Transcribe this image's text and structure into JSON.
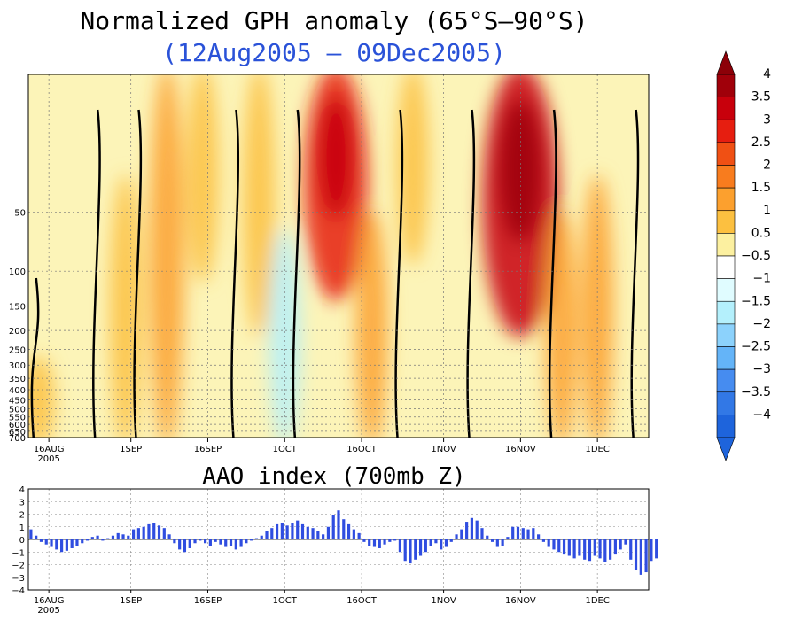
{
  "chart_data": [
    {
      "type": "heatmap",
      "title": "Normalized GPH anomaly (65°S–90°S)",
      "subtitle": "(12Aug2005 – 09Dec2005)",
      "x_ticks": [
        "16AUG",
        "1SEP",
        "16SEP",
        "1OCT",
        "16OCT",
        "1NOV",
        "16NOV",
        "1DEC"
      ],
      "x_year": "2005",
      "y_ticks": [
        "50",
        "100",
        "150",
        "200",
        "250",
        "300",
        "350",
        "400",
        "450",
        "500",
        "550",
        "600",
        "650",
        "700"
      ],
      "colorbar": {
        "levels": [
          "4",
          "3.5",
          "3",
          "2.5",
          "2",
          "1.5",
          "1",
          "0.5",
          "−0.5",
          "−1",
          "−1.5",
          "−2",
          "−2.5",
          "−3",
          "−3.5",
          "−4"
        ],
        "colors": [
          "#a0000a",
          "#c8000c",
          "#e61e10",
          "#f05014",
          "#f87c1e",
          "#fca02e",
          "#fcc040",
          "#fcf0a0",
          "#ffffff",
          "#e0fcff",
          "#b4f0fc",
          "#8cd2fc",
          "#64b4f8",
          "#468cf0",
          "#3278e6",
          "#1e64dc"
        ]
      },
      "features": [
        {
          "day": 2,
          "p_top": 0.8,
          "p_bot": 1.0,
          "value": 0.6
        },
        {
          "day": 19,
          "p_top": 0.3,
          "p_bot": 1.0,
          "value": 0.7
        },
        {
          "day": 27,
          "p_top": 0.0,
          "p_bot": 1.0,
          "value": 1.4
        },
        {
          "day": 34,
          "p_top": 0.0,
          "p_bot": 0.55,
          "value": 0.7
        },
        {
          "day": 45,
          "p_top": 0.0,
          "p_bot": 0.7,
          "value": 0.7
        },
        {
          "day": 50,
          "p_top": 0.45,
          "p_bot": 1.0,
          "value": -1.2
        },
        {
          "day": 60,
          "p_top": 0.0,
          "p_bot": 0.6,
          "value": 2.6
        },
        {
          "day": 67,
          "p_top": 0.4,
          "p_bot": 1.0,
          "value": 1.2
        },
        {
          "day": 75,
          "p_top": 0.0,
          "p_bot": 0.5,
          "value": 0.6
        },
        {
          "day": 96,
          "p_top": 0.0,
          "p_bot": 0.7,
          "value": 3.1
        },
        {
          "day": 104,
          "p_top": 0.4,
          "p_bot": 1.0,
          "value": 1.2
        },
        {
          "day": 111,
          "p_top": 0.3,
          "p_bot": 1.0,
          "value": 1.0
        }
      ]
    },
    {
      "type": "bar",
      "title": "AAO index (700mb Z)",
      "x_ticks": [
        "16AUG",
        "1SEP",
        "16SEP",
        "1OCT",
        "16OCT",
        "1NOV",
        "16NOV",
        "1DEC"
      ],
      "x_year": "2005",
      "y_ticks": [
        "4",
        "3",
        "2",
        "1",
        "0",
        "−1",
        "−2",
        "−3",
        "−4"
      ],
      "ylim": [
        -4,
        4
      ],
      "x_range_days": [
        0,
        121
      ],
      "start_date": "2005-08-12",
      "values": [
        0.8,
        0.3,
        -0.2,
        -0.4,
        -0.6,
        -0.8,
        -1.0,
        -0.9,
        -0.7,
        -0.5,
        -0.3,
        -0.1,
        0.2,
        0.3,
        -0.1,
        0.1,
        0.3,
        0.5,
        0.4,
        0.3,
        0.8,
        0.9,
        1.0,
        1.2,
        1.3,
        1.1,
        0.9,
        0.4,
        -0.3,
        -0.8,
        -1.0,
        -0.7,
        -0.3,
        -0.1,
        -0.3,
        -0.5,
        -0.2,
        -0.4,
        -0.6,
        -0.5,
        -0.8,
        -0.6,
        -0.3,
        -0.1,
        0.1,
        0.3,
        0.7,
        0.9,
        1.2,
        1.3,
        1.1,
        1.3,
        1.5,
        1.2,
        1.0,
        0.9,
        0.7,
        0.4,
        1.0,
        1.9,
        2.3,
        1.6,
        1.2,
        0.8,
        0.5,
        -0.2,
        -0.5,
        -0.6,
        -0.7,
        -0.4,
        -0.2,
        -0.1,
        -1.0,
        -1.7,
        -1.9,
        -1.6,
        -1.3,
        -1.0,
        -0.5,
        -0.3,
        -0.8,
        -0.6,
        -0.2,
        0.4,
        0.8,
        1.4,
        1.7,
        1.5,
        0.9,
        0.3,
        -0.2,
        -0.6,
        -0.5,
        0.2,
        1.0,
        1.0,
        0.9,
        0.8,
        0.9,
        0.4,
        -0.2,
        -0.6,
        -0.8,
        -1.0,
        -1.2,
        -1.3,
        -1.5,
        -1.3,
        -1.6,
        -1.7,
        -1.3,
        -1.5,
        -1.8,
        -1.6,
        -1.2,
        -0.8,
        -0.4,
        -1.6,
        -2.4,
        -2.8,
        -2.6,
        -1.7,
        -1.5
      ]
    }
  ]
}
